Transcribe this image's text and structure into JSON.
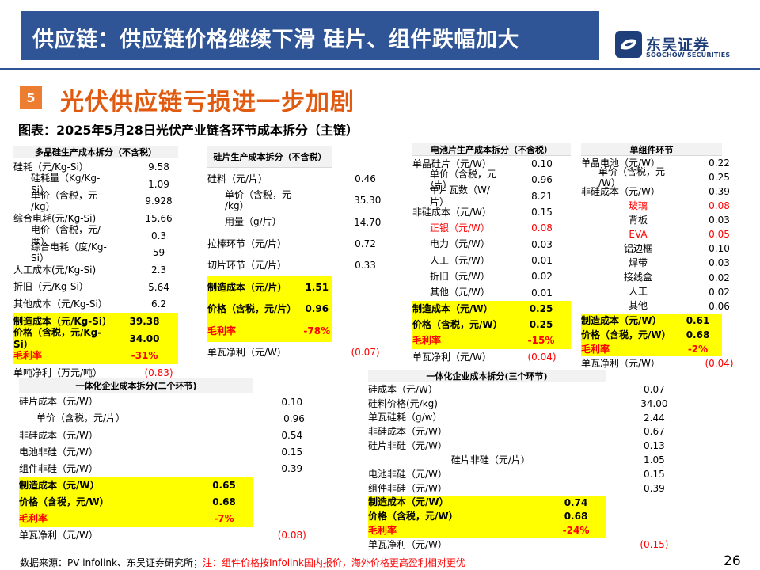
{
  "header": {
    "title": "供应链：供应链价格继续下滑 硅片、组件跌幅加大",
    "logo_name": "东吴证券",
    "logo_sub": "SOOCHOW SECURITIES"
  },
  "section": {
    "number": "5",
    "title": "光伏供应链亏损进一步加剧"
  },
  "figure_caption": "图表：2025年5月28日光伏产业链各环节成本拆分（主链）",
  "tables": {
    "polysilicon": {
      "title": "多晶硅生产成本拆分（不含税）",
      "rows": [
        {
          "label": "硅耗（元/Kg-Si）",
          "value": "9.58",
          "style": ""
        },
        {
          "label": "硅耗量（Kg/Kg-\nSi）",
          "value": "1.09",
          "style": "ind"
        },
        {
          "label": "单价（含税，元\n/kg）",
          "value": "9.928",
          "style": "ind"
        },
        {
          "label": "综合电耗(元/Kg-Si)",
          "value": "15.66",
          "style": ""
        },
        {
          "label": "电价（含税，元/\n度）",
          "value": "0.3",
          "style": "ind"
        },
        {
          "label": "综合电耗（度/Kg-\nSi）",
          "value": "59",
          "style": "ind"
        },
        {
          "label": "人工成本(元/Kg-Si)",
          "value": "2.3",
          "style": ""
        },
        {
          "label": "折旧（元/Kg-Si）",
          "value": "5.64",
          "style": ""
        },
        {
          "label": "其他成本（元/Kg-Si）",
          "value": "6.2",
          "style": ""
        },
        {
          "label": "制造成本（元/Kg-Si）",
          "value": "39.38",
          "style": "hl"
        },
        {
          "label": "价格（含税，元/Kg-Si）",
          "value": "34.00",
          "style": "hl"
        },
        {
          "label": "毛利率",
          "value": "-31%",
          "style": "hl red"
        },
        {
          "label": "单吨净利（万元/吨）",
          "value": "(0.83)",
          "style": "redv"
        }
      ]
    },
    "wafer": {
      "title": "硅片生产成本拆分（不含税）",
      "rows": [
        {
          "label": "硅料（元/片）",
          "value": "0.46",
          "style": ""
        },
        {
          "label": "单价（含税，元\n/kg）",
          "value": "35.30",
          "style": "ind"
        },
        {
          "label": "用量（g/片）",
          "value": "14.70",
          "style": "ind"
        },
        {
          "label": "拉棒环节（元/片）",
          "value": "0.72",
          "style": ""
        },
        {
          "label": "切片环节（元/片）",
          "value": "0.33",
          "style": ""
        },
        {
          "label": "制造成本（元/片）",
          "value": "1.51",
          "style": "hl"
        },
        {
          "label": "价格（含税，元/片）",
          "value": "0.96",
          "style": "hl"
        },
        {
          "label": "毛利率",
          "value": "-78%",
          "style": "hl red"
        },
        {
          "label": "单瓦净利（元/W）",
          "value": "(0.07)",
          "style": "redv"
        }
      ]
    },
    "cell": {
      "title": "电池片生产成本拆分（不含税）",
      "rows": [
        {
          "label": "单晶硅片（元/W）",
          "value": "0.10",
          "style": ""
        },
        {
          "label": "单价（含税，元\n/片）",
          "value": "0.96",
          "style": "ind"
        },
        {
          "label": "单片瓦数（W/\n片）",
          "value": "8.21",
          "style": "ind"
        },
        {
          "label": "非硅成本（元/W）",
          "value": "0.15",
          "style": ""
        },
        {
          "label": "正银（元/W）",
          "value": "0.08",
          "style": "ind red"
        },
        {
          "label": "电力（元/W）",
          "value": "0.03",
          "style": "ind"
        },
        {
          "label": "人工（元/W）",
          "value": "0.01",
          "style": "ind"
        },
        {
          "label": "折旧（元/W）",
          "value": "0.02",
          "style": "ind"
        },
        {
          "label": "其他（元/W）",
          "value": "0.01",
          "style": "ind"
        },
        {
          "label": "制造成本（元/W）",
          "value": "0.25",
          "style": "hl"
        },
        {
          "label": "价格（含税，元/W）",
          "value": "0.25",
          "style": "hl"
        },
        {
          "label": "毛利率",
          "value": "-15%",
          "style": "hl red"
        },
        {
          "label": "单瓦净利（元/W）",
          "value": "(0.04)",
          "style": "redv"
        }
      ]
    },
    "module": {
      "title": "单组件环节",
      "rows": [
        {
          "label": "单晶电池（元/W）",
          "value": "0.22",
          "style": ""
        },
        {
          "label": "单价（含税，元\n/W）",
          "value": "0.25",
          "style": "ind"
        },
        {
          "label": "非硅成本（元/W）",
          "value": "0.39",
          "style": ""
        },
        {
          "label": "玻璃",
          "value": "0.08",
          "style": "sub red"
        },
        {
          "label": "背板",
          "value": "0.03",
          "style": "sub"
        },
        {
          "label": "EVA",
          "value": "0.05",
          "style": "sub red"
        },
        {
          "label": "铝边框",
          "value": "0.10",
          "style": "sub"
        },
        {
          "label": "焊带",
          "value": "0.03",
          "style": "sub"
        },
        {
          "label": "接线盒",
          "value": "0.02",
          "style": "sub"
        },
        {
          "label": "人工",
          "value": "0.02",
          "style": "sub"
        },
        {
          "label": "其他",
          "value": "0.06",
          "style": "sub"
        },
        {
          "label": "制造成本（元/W）",
          "value": "0.61",
          "style": "hl"
        },
        {
          "label": "价格（含税，元/W）",
          "value": "0.68",
          "style": "hl"
        },
        {
          "label": "毛利率",
          "value": "-2%",
          "style": "hl red"
        },
        {
          "label": "单瓦净利（元/W）",
          "value": "(0.04)",
          "style": "redv"
        }
      ]
    },
    "integrated2": {
      "title": "一体化企业成本拆分(二个环节)",
      "rows": [
        {
          "label": "硅片成本（元/W）",
          "value": "0.10",
          "style": ""
        },
        {
          "label": "单价（含税，元/片）",
          "value": "0.96",
          "style": "ind"
        },
        {
          "label": "非硅成本（元/W）",
          "value": "0.54",
          "style": ""
        },
        {
          "label": "电池非硅（元/W）",
          "value": "0.15",
          "style": ""
        },
        {
          "label": "组件非硅（元/W）",
          "value": "0.39",
          "style": ""
        },
        {
          "label": "制造成本（元/W）",
          "value": "0.65",
          "style": "hl"
        },
        {
          "label": "价格（含税，元/W）",
          "value": "0.68",
          "style": "hl"
        },
        {
          "label": "毛利率",
          "value": "-7%",
          "style": "hl red"
        },
        {
          "label": "单瓦净利（元/W）",
          "value": "(0.08)",
          "style": "redv"
        }
      ]
    },
    "integrated3": {
      "title": "一体化企业成本拆分(三个环节)",
      "rows": [
        {
          "label": "硅成本（元/W）",
          "value": "0.07",
          "style": ""
        },
        {
          "label": "硅料价格(元/kg)",
          "value": "34.00",
          "style": ""
        },
        {
          "label": "单瓦硅耗（g/w）",
          "value": "2.44",
          "style": ""
        },
        {
          "label": "非硅成本（元/W）",
          "value": "0.67",
          "style": ""
        },
        {
          "label": "硅片非硅（元/W）",
          "value": "0.13",
          "style": ""
        },
        {
          "label": "硅片非硅（元/片）",
          "value": "1.05",
          "style": "sub"
        },
        {
          "label": "电池非硅（元/W）",
          "value": "0.15",
          "style": ""
        },
        {
          "label": "组件非硅（元/W）",
          "value": "0.39",
          "style": ""
        },
        {
          "label": "制造成本（元/W）",
          "value": "0.74",
          "style": "hl"
        },
        {
          "label": "价格（含税，元/W）",
          "value": "0.68",
          "style": "hl"
        },
        {
          "label": "毛利率",
          "value": "-24%",
          "style": "hl red"
        },
        {
          "label": "单瓦净利（元/W）",
          "value": "(0.15)",
          "style": "redv"
        }
      ]
    }
  },
  "footer": {
    "source": "数据来源：PV infolink、东吴证券研究所；",
    "note": "注：组件价格按Infolink国内报价，海外价格更高盈利相对更优",
    "page": "26"
  },
  "colors": {
    "banner": "#2f5597",
    "section_title": "#e05a10",
    "badge": "#ed7d31",
    "highlight": "#ffff00",
    "negative": "#ff0000"
  }
}
